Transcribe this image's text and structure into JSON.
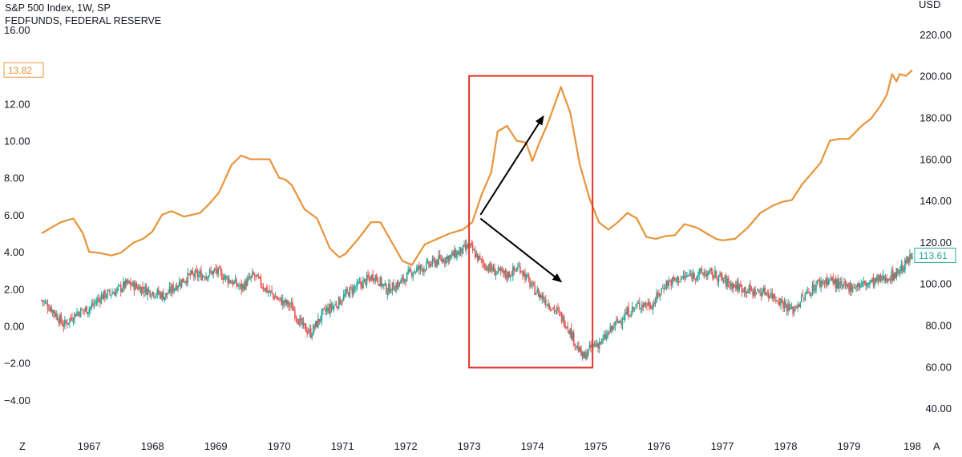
{
  "header": {
    "title": "S&P 500 Index, 1W, SP",
    "subtitle": "FEDFUNDS, FEDERAL RESERVE"
  },
  "colors": {
    "fedfunds_line": "#e8943a",
    "candle_up": "#26a69a",
    "candle_down": "#ef5350",
    "highlight_box": "#e0362c",
    "arrow": "#000000",
    "text": "#131722",
    "sp500_badge": "#26a69a",
    "fed_badge": "#e8943a"
  },
  "axis_corner": {
    "left_icon_label": "Z",
    "right_icon_label": "A",
    "left_icon": "z-timezone-icon",
    "right_icon": "a-autoscale-icon"
  },
  "chart_data": {
    "type": "line",
    "title": "S&P 500 Index, 1W, SP",
    "subtitle": "FEDFUNDS, FEDERAL RESERVE",
    "x_axis": {
      "tick_labels": [
        "1967",
        "1968",
        "1969",
        "1970",
        "1971",
        "1972",
        "1973",
        "1974",
        "1975",
        "1976",
        "1977",
        "1978",
        "1979",
        "198"
      ],
      "range": [
        1966.25,
        1980.0
      ]
    },
    "left_axis": {
      "tick_labels": [
        "16.00",
        "12.00",
        "10.00",
        "8.00",
        "6.00",
        "4.00",
        "2.00",
        "0.00",
        "−2.00",
        "−4.00"
      ],
      "ticks": [
        16,
        12,
        10,
        8,
        6,
        4,
        2,
        0,
        -2,
        -4
      ],
      "range": [
        -5.0,
        16.3
      ]
    },
    "right_axis": {
      "unit_label": "USD",
      "tick_labels": [
        "220.00",
        "200.00",
        "180.00",
        "160.00",
        "140.00",
        "120.00",
        "100.00",
        "80.00",
        "60.00",
        "40.00"
      ],
      "ticks": [
        220,
        200,
        180,
        160,
        140,
        120,
        100,
        80,
        60,
        40
      ],
      "range": [
        35,
        225
      ]
    },
    "series": [
      {
        "name": "FEDFUNDS, FEDERAL RESERVE",
        "type": "line",
        "axis": "left",
        "last_value_label": "13.82",
        "x": [
          1966.25,
          1966.4,
          1966.55,
          1966.75,
          1966.9,
          1967.0,
          1967.15,
          1967.35,
          1967.5,
          1967.7,
          1967.85,
          1968.0,
          1968.15,
          1968.3,
          1968.5,
          1968.75,
          1968.9,
          1969.05,
          1969.25,
          1969.4,
          1969.55,
          1969.65,
          1969.85,
          1970.0,
          1970.1,
          1970.2,
          1970.4,
          1970.6,
          1970.8,
          1970.95,
          1971.05,
          1971.25,
          1971.45,
          1971.6,
          1971.8,
          1971.95,
          1972.1,
          1972.3,
          1972.5,
          1972.7,
          1972.9,
          1973.05,
          1973.2,
          1973.35,
          1973.45,
          1973.6,
          1973.75,
          1973.9,
          1974.0,
          1974.1,
          1974.25,
          1974.45,
          1974.6,
          1974.75,
          1974.9,
          1975.05,
          1975.2,
          1975.35,
          1975.5,
          1975.65,
          1975.8,
          1975.95,
          1976.1,
          1976.25,
          1976.4,
          1976.6,
          1976.75,
          1976.9,
          1977.0,
          1977.2,
          1977.4,
          1977.6,
          1977.8,
          1977.95,
          1978.1,
          1978.25,
          1978.4,
          1978.55,
          1978.7,
          1978.85,
          1979.0,
          1979.2,
          1979.35,
          1979.5,
          1979.6,
          1979.68,
          1979.75,
          1979.8,
          1979.9,
          1980.0
        ],
        "y": [
          5.0,
          5.3,
          5.6,
          5.8,
          5.0,
          4.0,
          3.95,
          3.8,
          3.95,
          4.5,
          4.7,
          5.1,
          6.0,
          6.2,
          5.9,
          6.1,
          6.6,
          7.2,
          8.7,
          9.2,
          9.0,
          9.0,
          9.0,
          8.0,
          7.9,
          7.6,
          6.3,
          5.8,
          4.2,
          3.7,
          3.9,
          4.7,
          5.6,
          5.6,
          4.4,
          3.5,
          3.3,
          4.4,
          4.7,
          5.0,
          5.2,
          5.6,
          7.1,
          8.3,
          10.5,
          10.8,
          10.0,
          9.9,
          8.9,
          9.8,
          11.0,
          12.9,
          11.5,
          8.7,
          6.9,
          5.6,
          5.2,
          5.6,
          6.1,
          5.8,
          4.8,
          4.7,
          4.85,
          4.9,
          5.5,
          5.3,
          5.0,
          4.7,
          4.62,
          4.7,
          5.3,
          6.1,
          6.5,
          6.7,
          6.8,
          7.6,
          8.2,
          8.8,
          10.0,
          10.1,
          10.1,
          10.8,
          11.2,
          11.9,
          12.5,
          13.6,
          13.2,
          13.6,
          13.5,
          13.82
        ]
      },
      {
        "name": "S&P 500 Index, 1W, SP",
        "type": "candlestick",
        "axis": "right",
        "last_value_label": "113.61",
        "x": [
          1966.25,
          1966.4,
          1966.6,
          1966.8,
          1967.0,
          1967.2,
          1967.4,
          1967.6,
          1967.8,
          1968.0,
          1968.2,
          1968.4,
          1968.6,
          1968.8,
          1969.0,
          1969.2,
          1969.4,
          1969.6,
          1969.8,
          1970.0,
          1970.2,
          1970.35,
          1970.5,
          1970.7,
          1970.9,
          1971.1,
          1971.3,
          1971.5,
          1971.7,
          1971.9,
          1972.1,
          1972.3,
          1972.5,
          1972.7,
          1972.9,
          1973.0,
          1973.2,
          1973.4,
          1973.6,
          1973.8,
          1974.0,
          1974.2,
          1974.4,
          1974.55,
          1974.7,
          1974.8,
          1974.95,
          1975.1,
          1975.3,
          1975.5,
          1975.7,
          1975.9,
          1976.1,
          1976.3,
          1976.5,
          1976.7,
          1976.9,
          1977.1,
          1977.3,
          1977.5,
          1977.7,
          1977.9,
          1978.1,
          1978.3,
          1978.5,
          1978.7,
          1978.9,
          1979.1,
          1979.3,
          1979.5,
          1979.7,
          1979.85,
          1980.0
        ],
        "y": [
          92,
          88,
          80,
          86,
          88,
          94,
          96,
          100,
          98,
          96,
          94,
          100,
          104,
          104,
          106,
          102,
          98,
          104,
          97,
          92,
          89,
          80,
          76,
          86,
          90,
          96,
          100,
          104,
          97,
          100,
          106,
          108,
          111,
          113,
          116,
          118,
          110,
          106,
          104,
          108,
          98,
          92,
          86,
          80,
          70,
          64,
          70,
          72,
          80,
          86,
          90,
          90,
          100,
          102,
          104,
          105,
          104,
          100,
          98,
          96,
          96,
          92,
          87,
          94,
          100,
          102,
          98,
          99,
          100,
          102,
          104,
          108,
          113.61
        ]
      }
    ],
    "annotations": [
      {
        "type": "rectangle",
        "x_range": [
          1973.0,
          1974.95
        ],
        "left_axis_range": [
          -2.25,
          13.5
        ]
      },
      {
        "type": "arrow",
        "from": {
          "x": 1973.18,
          "left": 6.0
        },
        "to": {
          "x": 1974.17,
          "left": 11.3
        }
      },
      {
        "type": "arrow",
        "from": {
          "x": 1973.18,
          "left": 5.8
        },
        "to": {
          "x": 1974.45,
          "left": 2.4
        }
      }
    ],
    "grid": false,
    "legend": "top-left"
  }
}
